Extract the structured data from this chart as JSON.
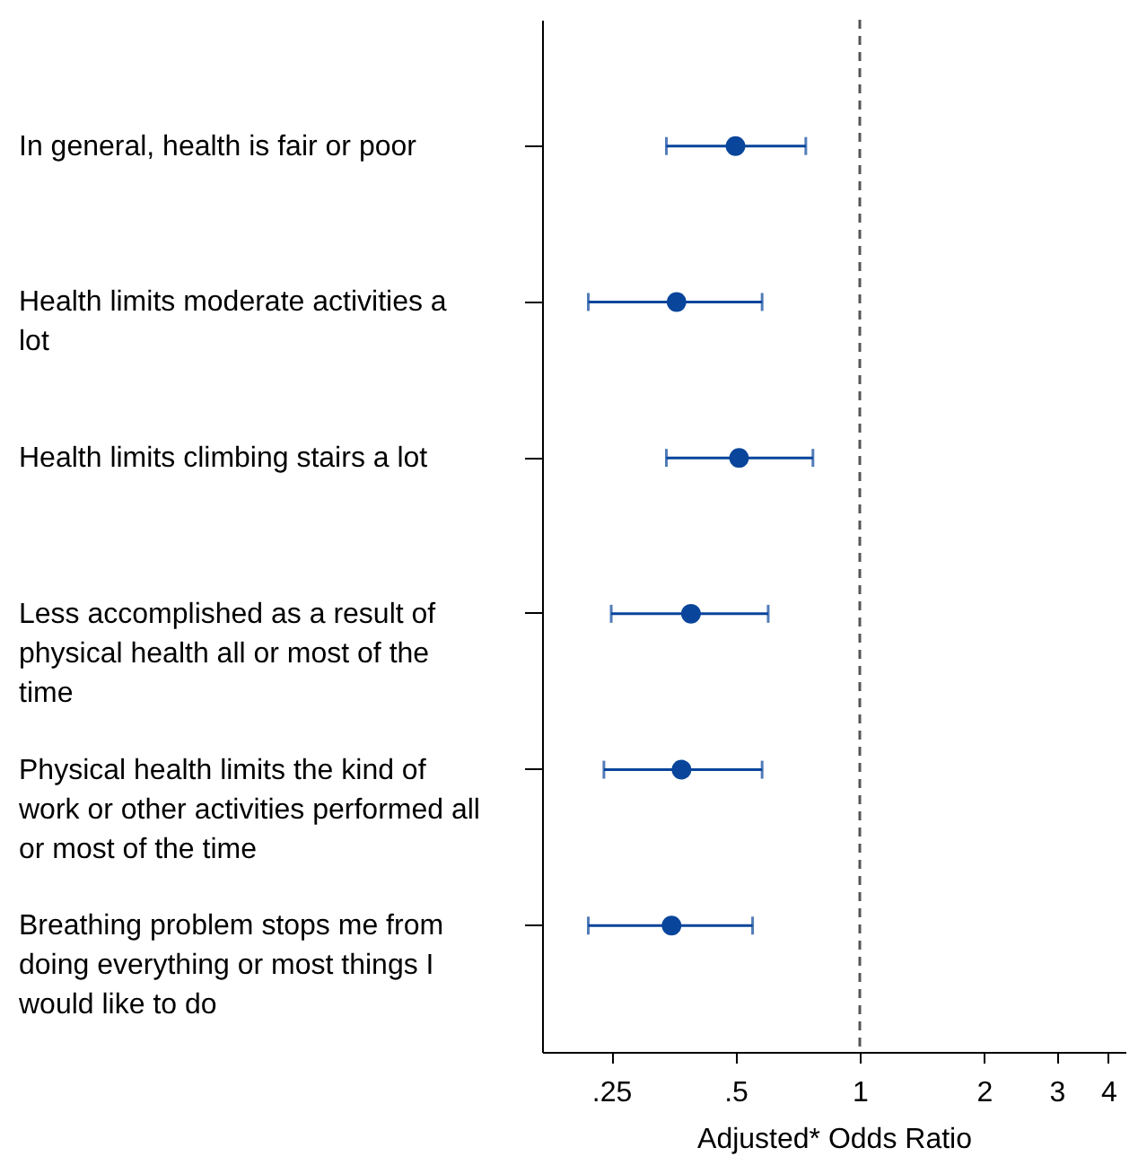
{
  "chart_data": {
    "type": "scatter",
    "orientation": "horizontal",
    "xlabel": "Adjusted* Odds Ratio",
    "categories": [
      "In general, health is fair or poor",
      "Health limits moderate activities a lot",
      "Health limits climbing stairs a lot",
      "Less accomplished as a result of physical health all or most of the time",
      "Physical health limits the kind of work or other activities performed all or most of the time",
      "Breathing problem stops me from doing everything or most things I would like to do"
    ],
    "series": [
      {
        "color": "#08459b",
        "values": [
          0.5,
          0.36,
          0.51,
          0.39,
          0.37,
          0.35
        ],
        "errors": [
          [
            0.34,
            0.74
          ],
          [
            0.22,
            0.58
          ],
          [
            0.34,
            0.77
          ],
          [
            0.25,
            0.6
          ],
          [
            0.24,
            0.58
          ],
          [
            0.22,
            0.55
          ]
        ]
      }
    ],
    "log": "x",
    "xlim": [
      0.17,
      4.4
    ],
    "xticks": [
      {
        "value": 0.25,
        "label": ".25"
      },
      {
        "value": 0.5,
        "label": ".5"
      },
      1,
      2,
      3,
      4
    ],
    "ref_lines": [
      {
        "axis": "x",
        "value": 1,
        "color": "#555555",
        "line_style": "dashed"
      }
    ],
    "marker": "circle",
    "grid": false
  }
}
